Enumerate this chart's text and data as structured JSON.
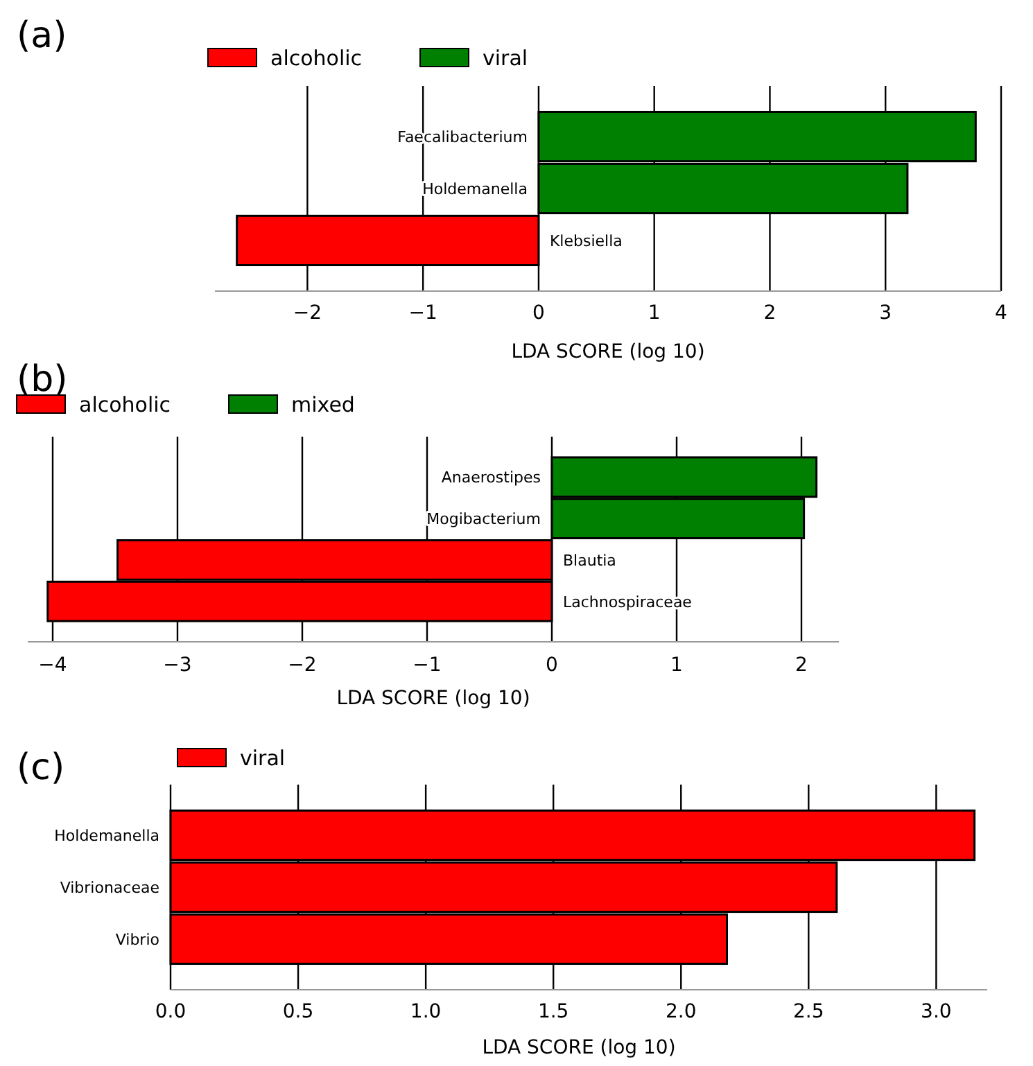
{
  "chart_data": [
    {
      "type": "bar",
      "orientation": "horizontal",
      "title": "(a)",
      "xlabel": "LDA SCORE (log 10)",
      "categories": [
        "Faecalibacterium",
        "Holdemanella",
        "Klebsiella"
      ],
      "series": [
        {
          "name": "alcoholic",
          "color": "#ff0000",
          "values": [
            null,
            null,
            -2.61
          ]
        },
        {
          "name": "viral",
          "color": "#008000",
          "values": [
            3.78,
            3.19,
            null
          ]
        }
      ],
      "xlim": [
        -2.8,
        4
      ],
      "xticks": [
        -2,
        -1,
        0,
        1,
        2,
        3,
        4
      ],
      "grid": "x",
      "legend": "top left"
    },
    {
      "type": "bar",
      "orientation": "horizontal",
      "title": "(b)",
      "xlabel": "LDA SCORE (log 10)",
      "categories": [
        "Anaerostipes",
        "Mogibacterium",
        "Blautia",
        "Lachnospiraceae"
      ],
      "series": [
        {
          "name": "alcoholic",
          "color": "#ff0000",
          "values": [
            null,
            null,
            -3.48,
            -4.04
          ]
        },
        {
          "name": "mixed",
          "color": "#008000",
          "values": [
            2.12,
            2.02,
            null,
            null
          ]
        }
      ],
      "xlim": [
        -4.2,
        2.3
      ],
      "xticks": [
        -4,
        -3,
        -2,
        -1,
        0,
        1,
        2
      ],
      "grid": "x",
      "legend": "top left"
    },
    {
      "type": "bar",
      "orientation": "horizontal",
      "title": "(c)",
      "xlabel": "LDA SCORE (log 10)",
      "categories": [
        "Holdemanella",
        "Vibrionaceae",
        "Vibrio"
      ],
      "series": [
        {
          "name": "viral",
          "color": "#ff0000",
          "values": [
            3.15,
            2.61,
            2.18
          ]
        }
      ],
      "xlim": [
        0,
        3.2
      ],
      "xticks": [
        {
          "value": 0,
          "label": "0.0"
        },
        {
          "value": 0.5,
          "label": "0.5"
        },
        {
          "value": 1,
          "label": "1.0"
        },
        {
          "value": 1.5,
          "label": "1.5"
        },
        {
          "value": 2,
          "label": "2.0"
        },
        {
          "value": 2.5,
          "label": "2.5"
        },
        {
          "value": 3,
          "label": "3.0"
        }
      ],
      "grid": "x",
      "legend": "top left"
    }
  ]
}
